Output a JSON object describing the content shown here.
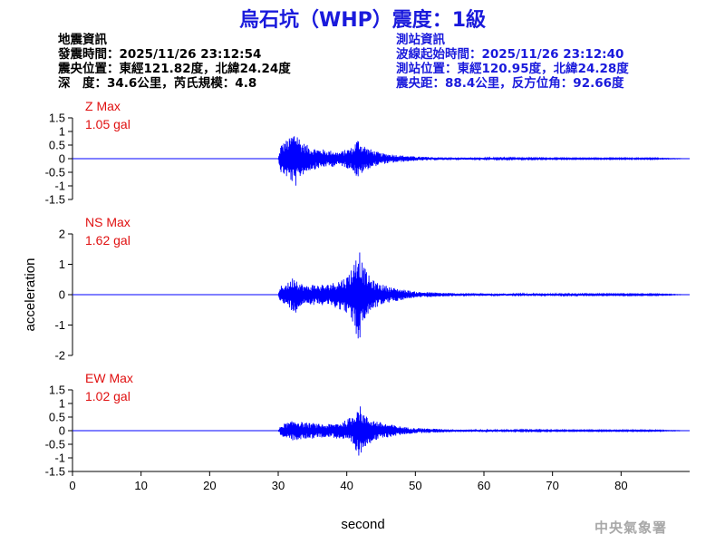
{
  "title": "烏石坑（WHP）震度：1級",
  "quake_info": {
    "heading": "地震資訊",
    "origin_time": "發震時間：2025/11/26 23:12:54",
    "epicenter": "震央位置：東經121.82度，北緯24.24度",
    "depth_magnitude": "深　度：34.6公里，芮氏規模：4.8"
  },
  "station_info": {
    "heading": "測站資訊",
    "wave_start": "波線起始時間：2025/11/26 23:12:40",
    "station_location": "測站位置：東經120.95度，北緯24.28度",
    "distance_azimuth": "震央距：88.4公里，反方位角：92.66度"
  },
  "watermark": "中央氣象署",
  "colors": {
    "title": "#1a1adc",
    "trace": "#0000ff",
    "max_label": "#e01010",
    "axis": "#000000"
  },
  "chart_data": [
    {
      "type": "line",
      "channel": "Z",
      "max_label": "Z Max",
      "max_value": "1.05 gal",
      "ylabel": "",
      "xlabel": "",
      "xlim": [
        0,
        90
      ],
      "ylim": [
        -1.5,
        1.5
      ],
      "yticks": [
        -1.5,
        -1,
        -0.5,
        0,
        0.5,
        1,
        1.5
      ],
      "ytick_labels": [
        "-1.5",
        "-1",
        "-0.5",
        "0",
        "0.5",
        "1",
        "1.5"
      ],
      "x": [
        0,
        30.0,
        30.4,
        30.8,
        31.2,
        31.6,
        32.0,
        32.4,
        32.8,
        33.2,
        33.6,
        34.0,
        34.5,
        35.0,
        35.5,
        36.0,
        36.5,
        37.0,
        37.5,
        38.0,
        38.5,
        39.0,
        39.5,
        40.0,
        40.5,
        41.0,
        41.4,
        41.8,
        42.2,
        42.6,
        43.0,
        43.5,
        44.0,
        44.5,
        45.0,
        46.0,
        47.0,
        48.0,
        49.0,
        50.0,
        52.0,
        54.0,
        56.0,
        58.0,
        60.0,
        65.0,
        70.0,
        75.0,
        80.0,
        85.0,
        90.0
      ],
      "y": [
        0,
        0,
        0.55,
        -0.6,
        0.7,
        -0.75,
        0.9,
        -1.05,
        1.0,
        -0.7,
        0.6,
        -0.55,
        0.45,
        -0.4,
        0.4,
        -0.35,
        0.35,
        -0.3,
        0.3,
        -0.3,
        0.25,
        -0.25,
        0.3,
        -0.35,
        0.4,
        -0.45,
        0.7,
        -0.75,
        0.55,
        -0.5,
        0.4,
        -0.35,
        0.3,
        -0.25,
        0.2,
        -0.18,
        0.15,
        -0.12,
        0.1,
        -0.08,
        0.06,
        -0.05,
        0.04,
        -0.04,
        0.03,
        -0.03,
        0.02,
        -0.02,
        0.02,
        -0.02,
        0
      ]
    },
    {
      "type": "line",
      "channel": "NS",
      "max_label": "NS Max",
      "max_value": "1.62 gal",
      "ylabel": "acceleration",
      "xlabel": "",
      "xlim": [
        0,
        90
      ],
      "ylim": [
        -2,
        2
      ],
      "yticks": [
        -2,
        -1,
        0,
        1,
        2
      ],
      "ytick_labels": [
        "-2",
        "-1",
        "0",
        "1",
        "2"
      ],
      "x": [
        0,
        30.0,
        30.4,
        30.8,
        31.2,
        31.6,
        32.0,
        32.4,
        32.8,
        33.2,
        33.6,
        34.0,
        34.5,
        35.0,
        35.5,
        36.0,
        36.5,
        37.0,
        37.5,
        38.0,
        38.5,
        39.0,
        39.5,
        40.0,
        40.5,
        41.0,
        41.4,
        41.8,
        42.2,
        42.6,
        43.0,
        43.5,
        44.0,
        44.5,
        45.0,
        46.0,
        47.0,
        48.0,
        49.0,
        50.0,
        52.0,
        54.0,
        56.0,
        58.0,
        60.0,
        65.0,
        70.0,
        75.0,
        80.0,
        85.0,
        90.0
      ],
      "y": [
        0,
        0,
        0.3,
        -0.35,
        0.4,
        -0.4,
        0.55,
        -0.65,
        0.5,
        -0.4,
        0.35,
        -0.3,
        0.3,
        -0.35,
        0.35,
        -0.3,
        0.35,
        -0.3,
        0.4,
        -0.4,
        0.45,
        -0.5,
        0.55,
        -0.6,
        0.85,
        -1.0,
        1.4,
        -1.62,
        1.1,
        -0.9,
        0.7,
        -0.55,
        0.45,
        -0.4,
        0.35,
        -0.28,
        0.22,
        -0.18,
        0.14,
        -0.1,
        0.08,
        -0.06,
        0.05,
        -0.05,
        0.04,
        -0.03,
        0.03,
        -0.02,
        0.02,
        -0.02,
        0
      ]
    },
    {
      "type": "line",
      "channel": "EW",
      "max_label": "EW Max",
      "max_value": "1.02 gal",
      "ylabel": "",
      "xlabel": "second",
      "xlim": [
        0,
        90
      ],
      "ylim": [
        -1.5,
        1.5
      ],
      "xticks": [
        0,
        10,
        20,
        30,
        40,
        50,
        60,
        70,
        80
      ],
      "xtick_labels": [
        "0",
        "10",
        "20",
        "30",
        "40",
        "50",
        "60",
        "70",
        "80"
      ],
      "yticks": [
        -1.5,
        -1,
        -0.5,
        0,
        0.5,
        1,
        1.5
      ],
      "ytick_labels": [
        "-1.5",
        "-1",
        "-0.5",
        "0",
        "0.5",
        "1",
        "1.5"
      ],
      "x": [
        0,
        30.0,
        30.4,
        30.8,
        31.2,
        31.6,
        32.0,
        32.4,
        32.8,
        33.2,
        33.6,
        34.0,
        34.5,
        35.0,
        35.5,
        36.0,
        36.5,
        37.0,
        37.5,
        38.0,
        38.5,
        39.0,
        39.5,
        40.0,
        40.5,
        41.0,
        41.4,
        41.8,
        42.2,
        42.6,
        43.0,
        43.5,
        44.0,
        44.5,
        45.0,
        46.0,
        47.0,
        48.0,
        49.0,
        50.0,
        52.0,
        54.0,
        56.0,
        58.0,
        60.0,
        65.0,
        70.0,
        75.0,
        80.0,
        85.0,
        90.0
      ],
      "y": [
        0,
        0,
        0.2,
        -0.25,
        0.3,
        -0.3,
        0.35,
        -0.4,
        0.4,
        -0.35,
        0.3,
        -0.3,
        0.28,
        -0.3,
        0.25,
        -0.25,
        0.25,
        -0.22,
        0.25,
        -0.25,
        0.3,
        -0.3,
        0.35,
        -0.4,
        0.5,
        -0.6,
        0.9,
        -1.02,
        0.75,
        -0.6,
        0.5,
        -0.45,
        0.4,
        -0.35,
        0.3,
        -0.25,
        0.2,
        -0.15,
        0.12,
        -0.1,
        0.08,
        -0.06,
        0.05,
        -0.04,
        0.04,
        -0.03,
        0.02,
        -0.02,
        0.02,
        -0.02,
        0
      ]
    }
  ]
}
